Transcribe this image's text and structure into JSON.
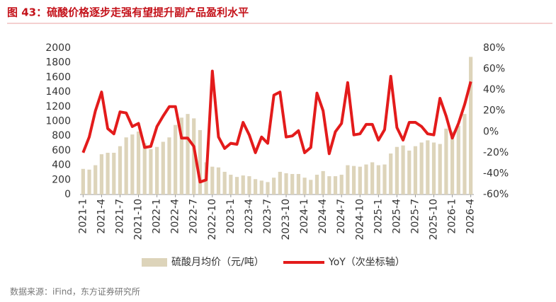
{
  "chart_data": {
    "type": "bar",
    "title": "图 43：硫酸价格逐步走强有望提升副产品盈利水平",
    "source": "数据来源：iFind，东方证券研究所",
    "categories": [
      "2021-1",
      null,
      null,
      "2021-4",
      null,
      null,
      "2021-7",
      null,
      null,
      "2021-10",
      null,
      null,
      "2022-1",
      null,
      null,
      "2022-4",
      null,
      null,
      "2022-7",
      null,
      null,
      "2022-10",
      null,
      null,
      "2023-1",
      null,
      null,
      "2023-4",
      null,
      null,
      "2023-7",
      null,
      null,
      "2023-10",
      null,
      null,
      "2024-1",
      null,
      null,
      "2024-4",
      null,
      null,
      "2024-7",
      null,
      null,
      "2024-10",
      null,
      null,
      "2025-1",
      null,
      null,
      "2025-4",
      null,
      null,
      "2025-7",
      null,
      null,
      "2025-10",
      null,
      null,
      "2026-1",
      null,
      null,
      "2026-4"
    ],
    "series": [
      {
        "name": "硫酸月均价（元/吨）",
        "type": "bar",
        "color": "#ddd4ba",
        "values": [
          350,
          340,
          400,
          550,
          570,
          570,
          660,
          780,
          820,
          860,
          700,
          620,
          650,
          720,
          780,
          950,
          1050,
          1100,
          1040,
          880,
          440,
          380,
          370,
          310,
          270,
          240,
          260,
          250,
          210,
          190,
          170,
          230,
          310,
          290,
          280,
          280,
          230,
          200,
          270,
          320,
          250,
          250,
          270,
          400,
          390,
          380,
          410,
          440,
          400,
          410,
          560,
          650,
          670,
          600,
          660,
          710,
          740,
          710,
          690,
          900,
          860,
          940,
          1100,
          1880
        ]
      },
      {
        "name": "YoY（次坐标轴）",
        "type": "line",
        "axis": "y2",
        "color": "#e31b1b",
        "values": [
          -20,
          -5,
          20,
          38,
          3,
          -2,
          19,
          18,
          5,
          8,
          -15,
          -14,
          5,
          15,
          24,
          24,
          -6,
          -6,
          -14,
          -48,
          -46,
          58,
          -5,
          -16,
          -11,
          -12,
          9,
          -3,
          -20,
          -5,
          -11,
          35,
          38,
          -5,
          -4,
          1,
          -20,
          -15,
          37,
          20,
          -21,
          0,
          8,
          47,
          -3,
          -2,
          7,
          7,
          -8,
          2,
          53,
          4,
          -8,
          9,
          9,
          5,
          -2,
          -3,
          32,
          15,
          -6,
          8,
          26,
          48
        ]
      }
    ],
    "ylim": [
      0,
      2000
    ],
    "yticks": [
      0,
      200,
      400,
      600,
      800,
      1000,
      1200,
      1400,
      1600,
      1800,
      2000
    ],
    "y2lim": [
      -60,
      80
    ],
    "y2ticks": [
      {
        "value": -60,
        "label": "-60%"
      },
      {
        "value": -40,
        "label": "-40%"
      },
      {
        "value": -20,
        "label": "-20%"
      },
      {
        "value": 0,
        "label": "0%"
      },
      {
        "value": 20,
        "label": "20%"
      },
      {
        "value": 40,
        "label": "40%"
      },
      {
        "value": 60,
        "label": "60%"
      },
      {
        "value": 80,
        "label": "80%"
      }
    ],
    "grid": false
  }
}
